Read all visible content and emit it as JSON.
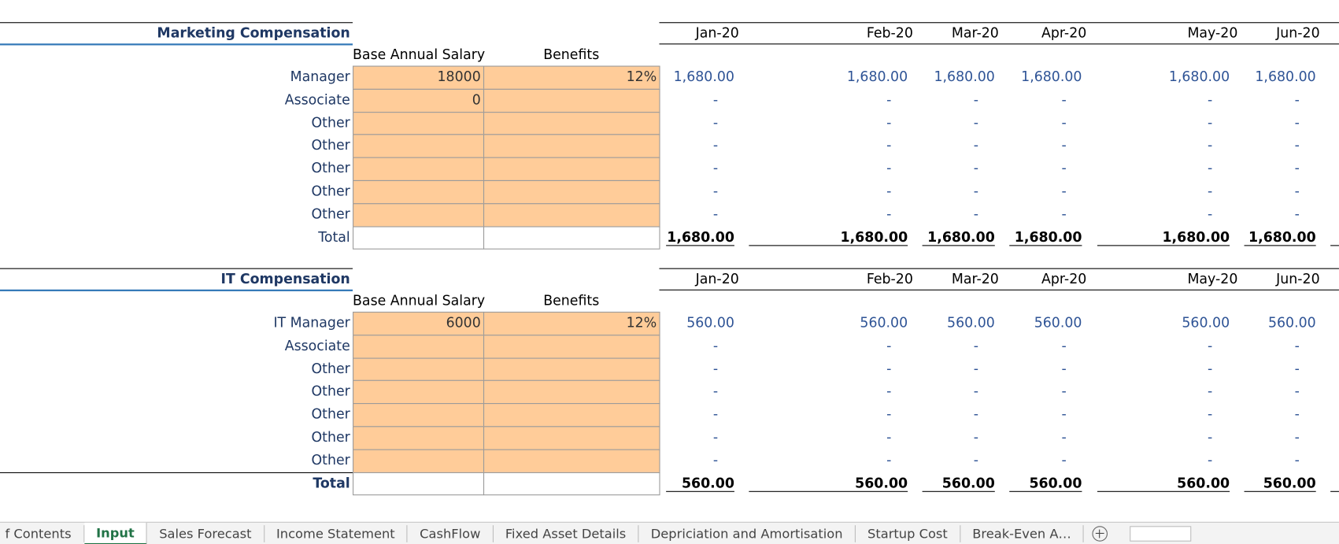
{
  "sections": [
    {
      "title": "Marketing Compensation",
      "months": [
        "Jan-20",
        "Feb-20",
        "Mar-20",
        "Apr-20",
        "May-20",
        "Jun-20"
      ],
      "headers": [
        "Base Annual Salary",
        "Benefits"
      ],
      "rows": [
        {
          "label": "Manager",
          "salary": 18000,
          "benefits": "12%",
          "values": [
            "1,680.00",
            "1,680.00",
            "1,680.00",
            "1,680.00",
            "1,680.00",
            "1,680.00"
          ]
        },
        {
          "label": "Associate",
          "salary": 0,
          "values": [
            "-",
            "-",
            "-",
            "-",
            "-",
            "-"
          ]
        },
        {
          "label": "Other",
          "values": [
            "-",
            "-",
            "-",
            "-",
            "-",
            "-"
          ]
        },
        {
          "label": "Other",
          "values": [
            "-",
            "-",
            "-",
            "-",
            "-",
            "-"
          ]
        },
        {
          "label": "Other",
          "values": [
            "-",
            "-",
            "-",
            "-",
            "-",
            "-"
          ]
        },
        {
          "label": "Other",
          "values": [
            "-",
            "-",
            "-",
            "-",
            "-",
            "-"
          ]
        },
        {
          "label": "Other",
          "values": [
            "-",
            "-",
            "-",
            "-",
            "-",
            "-"
          ]
        }
      ],
      "total": {
        "label": "Total",
        "values": [
          "1,680.00",
          "1,680.00",
          "1,680.00",
          "1,680.00",
          "1,680.00",
          "1,680.00"
        ]
      }
    },
    {
      "title": "IT Compensation",
      "months": [
        "Jan-20",
        "Feb-20",
        "Mar-20",
        "Apr-20",
        "May-20",
        "Jun-20"
      ],
      "headers": [
        "Base Annual Salary",
        "Benefits"
      ],
      "rows": [
        {
          "label": "IT Manager",
          "salary": 6000,
          "benefits": "12%",
          "values": [
            "560.00",
            "560.00",
            "560.00",
            "560.00",
            "560.00",
            "560.00"
          ]
        },
        {
          "label": "Associate",
          "values": [
            "-",
            "-",
            "-",
            "-",
            "-",
            "-"
          ]
        },
        {
          "label": "Other",
          "values": [
            "-",
            "-",
            "-",
            "-",
            "-",
            "-"
          ]
        },
        {
          "label": "Other",
          "values": [
            "-",
            "-",
            "-",
            "-",
            "-",
            "-"
          ]
        },
        {
          "label": "Other",
          "values": [
            "-",
            "-",
            "-",
            "-",
            "-",
            "-"
          ]
        },
        {
          "label": "Other",
          "values": [
            "-",
            "-",
            "-",
            "-",
            "-",
            "-"
          ]
        },
        {
          "label": "Other",
          "values": [
            "-",
            "-",
            "-",
            "-",
            "-",
            "-"
          ]
        }
      ],
      "total": {
        "label": "Total",
        "values": [
          "560.00",
          "560.00",
          "560.00",
          "560.00",
          "560.00",
          "560.00"
        ]
      }
    }
  ],
  "tabs": [
    "f Contents",
    "Input",
    "Sales Forecast",
    "Income Statement",
    "CashFlow",
    "Fixed Asset Details",
    "Depriciation and Amortisation",
    "Startup Cost",
    "Break-Even A…"
  ],
  "active_tab": 1
}
